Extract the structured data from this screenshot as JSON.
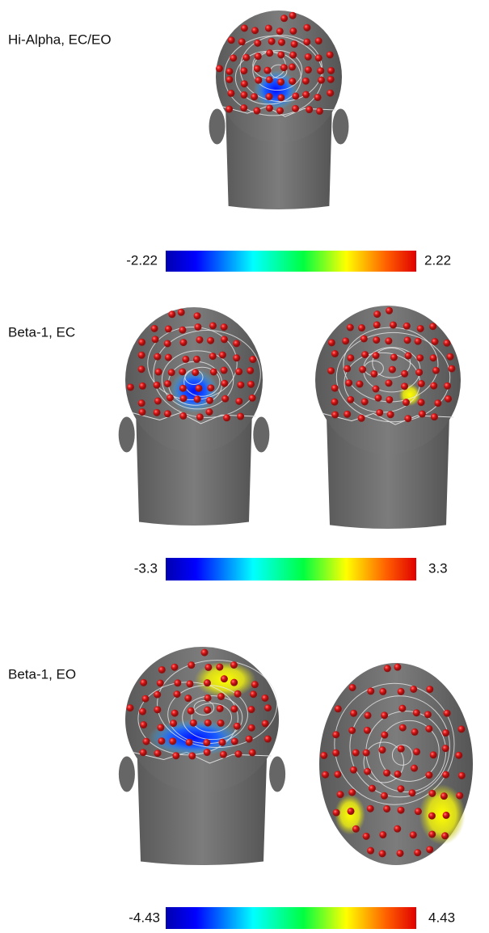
{
  "panels": [
    {
      "label": "Hi-Alpha, EC/EO",
      "colorbar": {
        "min": -2.22,
        "max": 2.22
      }
    },
    {
      "label": "Beta-1, EC",
      "colorbar": {
        "min": -3.3,
        "max": 3.3
      }
    },
    {
      "label": "Beta-1, EO",
      "colorbar": {
        "min": -4.43,
        "max": 4.43
      }
    }
  ]
}
